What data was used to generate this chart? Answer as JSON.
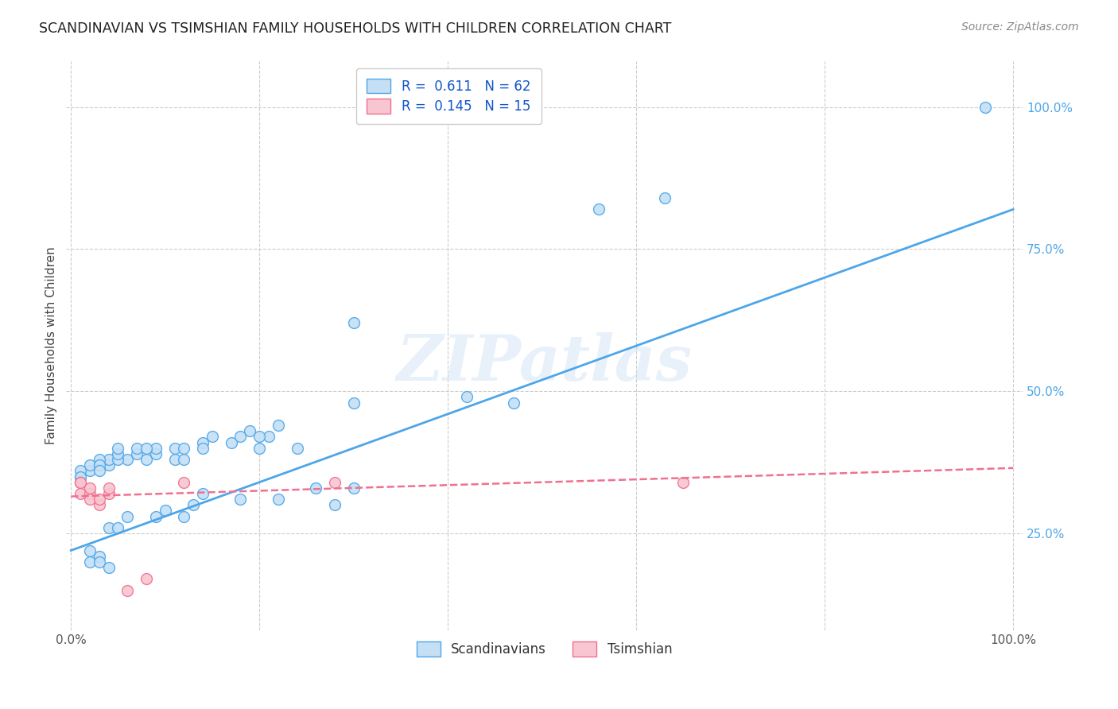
{
  "title": "SCANDINAVIAN VS TSIMSHIAN FAMILY HOUSEHOLDS WITH CHILDREN CORRELATION CHART",
  "source": "Source: ZipAtlas.com",
  "ylabel": "Family Households with Children",
  "watermark": "ZIPatlas",
  "legend_entries": [
    {
      "label": "R =  0.611   N = 62",
      "color": "#a8c8f0"
    },
    {
      "label": "R =  0.145   N = 15",
      "color": "#f5b8c8"
    }
  ],
  "legend_bottom": [
    {
      "label": "Scandinavians",
      "color": "#a8c8f0"
    },
    {
      "label": "Tsimshian",
      "color": "#f5b8c8"
    }
  ],
  "scandinavian_x": [
    0.97,
    0.63,
    0.56,
    0.3,
    0.42,
    0.3,
    0.47,
    0.19,
    0.21,
    0.24,
    0.22,
    0.14,
    0.14,
    0.15,
    0.17,
    0.18,
    0.2,
    0.2,
    0.09,
    0.09,
    0.11,
    0.11,
    0.12,
    0.12,
    0.06,
    0.07,
    0.07,
    0.08,
    0.08,
    0.04,
    0.04,
    0.05,
    0.05,
    0.05,
    0.02,
    0.02,
    0.03,
    0.03,
    0.03,
    0.03,
    0.01,
    0.01,
    0.01,
    0.01,
    0.14,
    0.18,
    0.22,
    0.26,
    0.28,
    0.3,
    0.09,
    0.1,
    0.12,
    0.13,
    0.04,
    0.05,
    0.06,
    0.02,
    0.02,
    0.03,
    0.03,
    0.04
  ],
  "scandinavian_y": [
    1.0,
    0.84,
    0.82,
    0.62,
    0.49,
    0.48,
    0.48,
    0.43,
    0.42,
    0.4,
    0.44,
    0.41,
    0.4,
    0.42,
    0.41,
    0.42,
    0.42,
    0.4,
    0.39,
    0.4,
    0.38,
    0.4,
    0.38,
    0.4,
    0.38,
    0.39,
    0.4,
    0.38,
    0.4,
    0.37,
    0.38,
    0.38,
    0.39,
    0.4,
    0.36,
    0.37,
    0.37,
    0.38,
    0.37,
    0.36,
    0.35,
    0.36,
    0.35,
    0.34,
    0.32,
    0.31,
    0.31,
    0.33,
    0.3,
    0.33,
    0.28,
    0.29,
    0.28,
    0.3,
    0.26,
    0.26,
    0.28,
    0.22,
    0.2,
    0.21,
    0.2,
    0.19
  ],
  "tsimshian_x": [
    0.65,
    0.28,
    0.01,
    0.01,
    0.01,
    0.02,
    0.02,
    0.02,
    0.03,
    0.03,
    0.04,
    0.04,
    0.06,
    0.08,
    0.12
  ],
  "tsimshian_y": [
    0.34,
    0.34,
    0.34,
    0.34,
    0.32,
    0.32,
    0.33,
    0.31,
    0.3,
    0.31,
    0.32,
    0.33,
    0.15,
    0.17,
    0.34
  ],
  "scand_line_x": [
    0.0,
    1.0
  ],
  "scand_line_y": [
    0.22,
    0.82
  ],
  "tsim_line_x": [
    0.0,
    1.0
  ],
  "tsim_line_y": [
    0.315,
    0.365
  ],
  "scand_color": "#4da6e8",
  "tsim_color": "#f07090",
  "scand_fill": "#c5dff5",
  "tsim_fill": "#f8c5d0",
  "grid_color": "#cccccc",
  "background_color": "#ffffff",
  "ylim_min": 0.08,
  "ylim_max": 1.08,
  "xlim_min": -0.005,
  "xlim_max": 1.01
}
